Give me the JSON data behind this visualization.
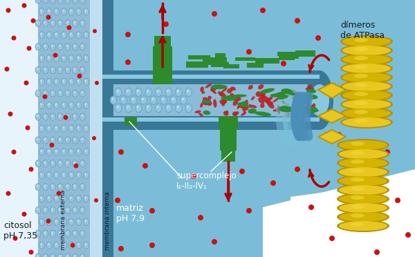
{
  "bg_light": "#b8dff0",
  "bg_matrix": "#7bbdd8",
  "cytosol_white": "#f0f8ff",
  "membrane_bubble_bg": "#90c0d8",
  "membrane_dark_blue": "#2a6888",
  "ims_color": "#9ccfe0",
  "cristae_lumen": "#88c0d8",
  "cristae_membrane_outer": "#4a8fb0",
  "cristae_membrane_inner": "#5aaac8",
  "matrix_dark": "#5090b0",
  "green_complex": "#2d8a2d",
  "green_dark": "#1a5a1a",
  "yellow_atp": "#e8c820",
  "yellow_dark": "#b89800",
  "yellow_edge": "#c0a000",
  "red_dot": "#cc1111",
  "red_line": "#aa0000",
  "white": "#ffffff",
  "text_dark": "#1a1a2a",
  "label_citosol": "citosol\npH 7,35",
  "label_membrana_externa": "membrana externa",
  "label_membrana_interna": "membrana interna",
  "label_matriz": "matriz\npH 7,9",
  "label_supercomplejo": "supercomplejo\nI₁-II₂-IV₁",
  "label_dimeros": "dímeros\nde ATPasa"
}
